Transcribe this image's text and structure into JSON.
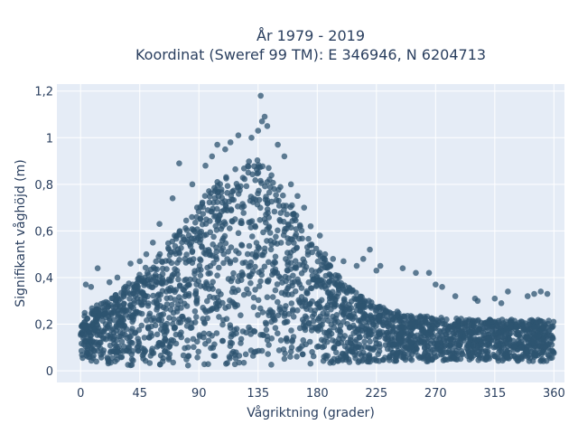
{
  "chart_data": {
    "type": "scatter",
    "title": "År 1979 - 2019",
    "subtitle": "Koordinat (Sweref 99 TM): E 346946, N 6204713",
    "xlabel": "Vågriktning (grader)",
    "ylabel": "Signifikant våghöjd (m)",
    "xlim": [
      -18,
      368
    ],
    "ylim": [
      -0.05,
      1.23
    ],
    "xticks": [
      0,
      45,
      90,
      135,
      180,
      225,
      270,
      315,
      360
    ],
    "xtick_labels": [
      "0",
      "45",
      "90",
      "135",
      "180",
      "225",
      "270",
      "315",
      "360"
    ],
    "yticks": [
      0,
      0.2,
      0.4,
      0.6,
      0.8,
      1.0,
      1.2
    ],
    "ytick_labels": [
      "0",
      "0,2",
      "0,4",
      "0,6",
      "0,8",
      "1",
      "1,2"
    ],
    "grid": true,
    "marker_color": "#2e5470",
    "background": "#e5ecf6",
    "envelope": {
      "direction": [
        0,
        20,
        45,
        60,
        90,
        110,
        135,
        150,
        180,
        200,
        225,
        250,
        270,
        300,
        330,
        360
      ],
      "max_height": [
        0.25,
        0.3,
        0.42,
        0.5,
        0.72,
        0.86,
        0.93,
        0.82,
        0.52,
        0.38,
        0.28,
        0.24,
        0.23,
        0.22,
        0.22,
        0.22
      ],
      "min_height": [
        0.05,
        0.03,
        0.02,
        0.02,
        0.02,
        0.02,
        0.02,
        0.02,
        0.03,
        0.03,
        0.04,
        0.04,
        0.04,
        0.04,
        0.04,
        0.04
      ]
    },
    "outliers": [
      {
        "x": 137,
        "y": 1.18
      },
      {
        "x": 140,
        "y": 1.09
      },
      {
        "x": 138,
        "y": 1.07
      },
      {
        "x": 142,
        "y": 1.05
      },
      {
        "x": 135,
        "y": 1.03
      },
      {
        "x": 130,
        "y": 1.0
      },
      {
        "x": 120,
        "y": 1.01
      },
      {
        "x": 114,
        "y": 0.98
      },
      {
        "x": 104,
        "y": 0.97
      },
      {
        "x": 110,
        "y": 0.95
      },
      {
        "x": 100,
        "y": 0.92
      },
      {
        "x": 95,
        "y": 0.88
      },
      {
        "x": 75,
        "y": 0.89
      },
      {
        "x": 85,
        "y": 0.8
      },
      {
        "x": 70,
        "y": 0.74
      },
      {
        "x": 60,
        "y": 0.63
      },
      {
        "x": 55,
        "y": 0.55
      },
      {
        "x": 50,
        "y": 0.5
      },
      {
        "x": 45,
        "y": 0.47
      },
      {
        "x": 38,
        "y": 0.46
      },
      {
        "x": 13,
        "y": 0.44
      },
      {
        "x": 4,
        "y": 0.37
      },
      {
        "x": 8,
        "y": 0.36
      },
      {
        "x": 22,
        "y": 0.38
      },
      {
        "x": 28,
        "y": 0.4
      },
      {
        "x": 150,
        "y": 0.97
      },
      {
        "x": 155,
        "y": 0.92
      },
      {
        "x": 160,
        "y": 0.8
      },
      {
        "x": 165,
        "y": 0.75
      },
      {
        "x": 170,
        "y": 0.7
      },
      {
        "x": 175,
        "y": 0.62
      },
      {
        "x": 182,
        "y": 0.58
      },
      {
        "x": 186,
        "y": 0.5
      },
      {
        "x": 192,
        "y": 0.48
      },
      {
        "x": 200,
        "y": 0.47
      },
      {
        "x": 210,
        "y": 0.45
      },
      {
        "x": 215,
        "y": 0.48
      },
      {
        "x": 220,
        "y": 0.52
      },
      {
        "x": 225,
        "y": 0.43
      },
      {
        "x": 228,
        "y": 0.45
      },
      {
        "x": 245,
        "y": 0.44
      },
      {
        "x": 255,
        "y": 0.42
      },
      {
        "x": 265,
        "y": 0.42
      },
      {
        "x": 270,
        "y": 0.37
      },
      {
        "x": 275,
        "y": 0.36
      },
      {
        "x": 285,
        "y": 0.32
      },
      {
        "x": 300,
        "y": 0.31
      },
      {
        "x": 320,
        "y": 0.29
      },
      {
        "x": 325,
        "y": 0.34
      },
      {
        "x": 340,
        "y": 0.32
      },
      {
        "x": 345,
        "y": 0.33
      },
      {
        "x": 350,
        "y": 0.34
      },
      {
        "x": 355,
        "y": 0.33
      },
      {
        "x": 302,
        "y": 0.3
      },
      {
        "x": 315,
        "y": 0.31
      }
    ]
  }
}
